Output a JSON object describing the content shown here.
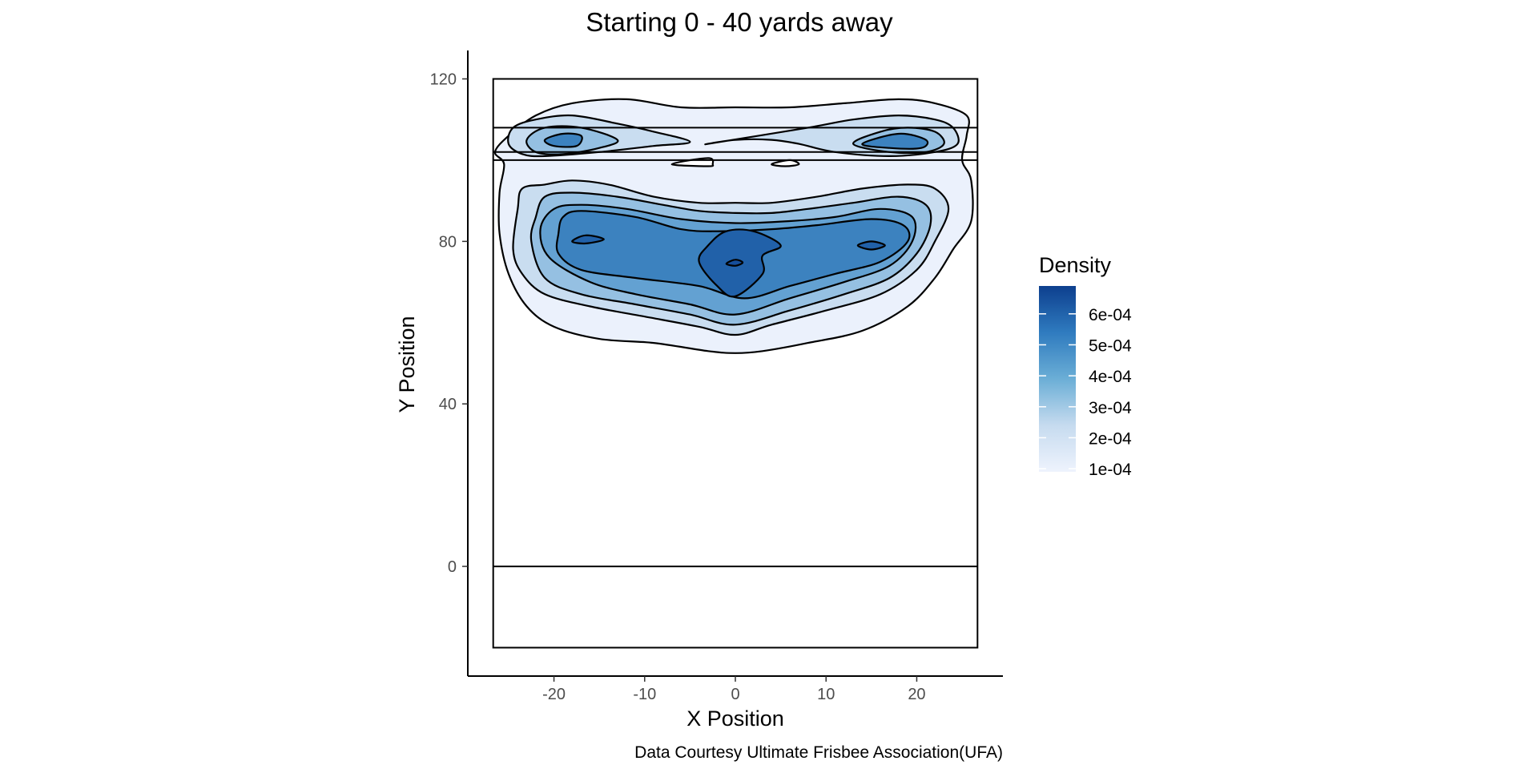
{
  "chart_data": {
    "type": "contour",
    "title": "Starting 0 - 40 yards away",
    "xlabel": "X Position",
    "ylabel": "Y Position",
    "caption": "Data Courtesy Ultimate Frisbee Association(UFA)",
    "xlim": [
      -29.5,
      29.5
    ],
    "ylim": [
      -27,
      127
    ],
    "x_ticks": [
      -20,
      -10,
      0,
      10,
      20
    ],
    "y_ticks": [
      0,
      40,
      80,
      120
    ],
    "x_tick_labels": [
      "-20",
      "-10",
      "0",
      "10",
      "20"
    ],
    "y_tick_labels": [
      "0",
      "40",
      "80",
      "120"
    ],
    "field": {
      "x_range": [
        -26.7,
        26.7
      ],
      "y_range": [
        -20,
        120
      ],
      "horizontal_lines_y": [
        0,
        100,
        102,
        108,
        120
      ]
    },
    "legend": {
      "title": "Density",
      "breaks": [
        0.0001,
        0.0002,
        0.0003,
        0.0004,
        0.0005,
        0.0006
      ],
      "labels": [
        "1e-04",
        "2e-04",
        "3e-04",
        "4e-04",
        "5e-04",
        "6e-04"
      ],
      "range": [
        9e-05,
        0.00069
      ],
      "color_low": "#eef3fd",
      "color_high": "#0d3f8e"
    },
    "density_peaks": [
      {
        "x": 0,
        "y": 75,
        "density": 0.00067
      },
      {
        "x": -16,
        "y": 80.5,
        "density": 0.00065
      },
      {
        "x": 15,
        "y": 79,
        "density": 0.00064
      },
      {
        "x": -19,
        "y": 106,
        "density": 0.00055
      },
      {
        "x": 18.5,
        "y": 106,
        "density": 0.00055
      }
    ],
    "contours": [
      {
        "level": 0.0001,
        "points": [
          [
            -26,
            82
          ],
          [
            -26,
            92
          ],
          [
            -25.5,
            99
          ],
          [
            -26.5,
            102
          ],
          [
            -25,
            106
          ],
          [
            -22,
            111
          ],
          [
            -18,
            114
          ],
          [
            -12,
            115
          ],
          [
            -6,
            113
          ],
          [
            0,
            113
          ],
          [
            6,
            113
          ],
          [
            12,
            114
          ],
          [
            18,
            115
          ],
          [
            22,
            114
          ],
          [
            25.5,
            111
          ],
          [
            25.5,
            106
          ],
          [
            25,
            100
          ],
          [
            26,
            95
          ],
          [
            26,
            85
          ],
          [
            24,
            78
          ],
          [
            22,
            71
          ],
          [
            19,
            64
          ],
          [
            14,
            58
          ],
          [
            8,
            55
          ],
          [
            3,
            53
          ],
          [
            0,
            52.5
          ],
          [
            -3,
            53
          ],
          [
            -9,
            55
          ],
          [
            -15,
            56
          ],
          [
            -20,
            59
          ],
          [
            -23,
            64
          ],
          [
            -25,
            72
          ]
        ]
      },
      {
        "level": 0.0002,
        "points": [
          [
            -25,
            104
          ],
          [
            -23.5,
            101.5
          ],
          [
            -21,
            101
          ],
          [
            -15,
            102
          ],
          [
            -9,
            103.5
          ],
          [
            -5,
            104.5
          ],
          [
            -9,
            107
          ],
          [
            -13,
            109
          ],
          [
            -18,
            111
          ],
          [
            -22,
            110
          ],
          [
            -24.5,
            108
          ]
        ]
      },
      {
        "level": 0.0002,
        "points": [
          [
            -3,
            104
          ],
          [
            0,
            105
          ],
          [
            4,
            105
          ],
          [
            7,
            104
          ],
          [
            11,
            102
          ],
          [
            17,
            101
          ],
          [
            22,
            102
          ],
          [
            24.5,
            104
          ],
          [
            24,
            108
          ],
          [
            22,
            110
          ],
          [
            18,
            111
          ],
          [
            13,
            110
          ],
          [
            8,
            108
          ]
        ]
      },
      {
        "level": 0.0002,
        "points": [
          [
            -24.5,
            78
          ],
          [
            -24,
            88
          ],
          [
            -23.5,
            93
          ],
          [
            -21,
            94
          ],
          [
            -18,
            95
          ],
          [
            -14,
            94
          ],
          [
            -9,
            91
          ],
          [
            -4,
            89.5
          ],
          [
            0,
            89.5
          ],
          [
            4,
            89.5
          ],
          [
            9,
            91
          ],
          [
            14,
            93
          ],
          [
            19,
            94
          ],
          [
            22,
            93
          ],
          [
            23.5,
            88
          ],
          [
            22,
            80
          ],
          [
            20,
            73
          ],
          [
            16,
            67
          ],
          [
            10,
            63
          ],
          [
            4,
            59.5
          ],
          [
            0,
            57
          ],
          [
            -4,
            59
          ],
          [
            -10,
            61.5
          ],
          [
            -16,
            64
          ],
          [
            -21,
            67
          ],
          [
            -23.5,
            72
          ]
        ]
      },
      {
        "level": 0.0003,
        "points": [
          [
            -23,
            105
          ],
          [
            -22,
            102
          ],
          [
            -19,
            101.5
          ],
          [
            -15,
            103
          ],
          [
            -13,
            105
          ],
          [
            -17,
            108
          ],
          [
            -21,
            108
          ]
        ]
      },
      {
        "level": 0.0003,
        "points": [
          [
            13,
            104
          ],
          [
            17,
            102
          ],
          [
            21,
            102
          ],
          [
            23,
            104
          ],
          [
            22,
            107
          ],
          [
            19,
            108
          ],
          [
            16,
            107
          ]
        ]
      },
      {
        "level": 0.0003,
        "points": [
          [
            -22.5,
            80
          ],
          [
            -22,
            86
          ],
          [
            -21,
            91
          ],
          [
            -18,
            92
          ],
          [
            -13,
            91
          ],
          [
            -8,
            89
          ],
          [
            -4,
            87.5
          ],
          [
            0,
            87
          ],
          [
            4,
            87
          ],
          [
            8,
            88
          ],
          [
            13,
            89.5
          ],
          [
            18,
            91
          ],
          [
            21,
            89
          ],
          [
            21.5,
            84
          ],
          [
            20,
            77
          ],
          [
            17,
            71
          ],
          [
            12,
            67
          ],
          [
            6,
            63
          ],
          [
            0,
            59.5
          ],
          [
            -5,
            62
          ],
          [
            -11,
            64.5
          ],
          [
            -17,
            67
          ],
          [
            -21,
            71
          ]
        ]
      },
      {
        "level": 0.0004,
        "points": [
          [
            -21.5,
            83
          ],
          [
            -20,
            88
          ],
          [
            -17,
            89
          ],
          [
            -12,
            88
          ],
          [
            -6,
            85.5
          ],
          [
            0,
            84.5
          ],
          [
            6,
            85
          ],
          [
            11,
            86
          ],
          [
            16,
            88
          ],
          [
            19.5,
            86
          ],
          [
            19.5,
            80
          ],
          [
            17,
            74
          ],
          [
            12,
            70
          ],
          [
            6,
            66
          ],
          [
            0,
            62
          ],
          [
            -5,
            64.5
          ],
          [
            -11,
            67
          ],
          [
            -16,
            70
          ],
          [
            -20.5,
            76
          ]
        ]
      },
      {
        "level": 0.0005,
        "points": [
          [
            -19.5,
            82
          ],
          [
            -19,
            86
          ],
          [
            -17,
            87.5
          ],
          [
            -11,
            86
          ],
          [
            -6,
            83
          ],
          [
            -2,
            82.5
          ],
          [
            4,
            83
          ],
          [
            9,
            84
          ],
          [
            15,
            85.5
          ],
          [
            18.5,
            84
          ],
          [
            19,
            80
          ],
          [
            16,
            75
          ],
          [
            11,
            72
          ],
          [
            6,
            69
          ],
          [
            1,
            66
          ],
          [
            -4,
            69
          ],
          [
            -11,
            71
          ],
          [
            -17,
            73
          ],
          [
            -19.5,
            77
          ]
        ]
      },
      {
        "level": 0.0005,
        "points": [
          [
            -21,
            105
          ],
          [
            -20,
            103.5
          ],
          [
            -17.5,
            103.5
          ],
          [
            -17,
            106
          ],
          [
            -19,
            106.5
          ]
        ]
      },
      {
        "level": 0.0005,
        "points": [
          [
            14,
            104
          ],
          [
            17,
            103
          ],
          [
            20.5,
            103
          ],
          [
            21,
            105
          ],
          [
            18,
            106.5
          ]
        ]
      },
      {
        "level": 0.0006,
        "points": [
          [
            -4,
            75
          ],
          [
            -3,
            79
          ],
          [
            -1,
            82.5
          ],
          [
            2,
            82.5
          ],
          [
            5,
            79
          ],
          [
            3,
            76.5
          ],
          [
            3,
            72
          ],
          [
            0,
            66.5
          ],
          [
            -2,
            69
          ]
        ]
      },
      {
        "level": 0.0006,
        "points": [
          [
            -18,
            80
          ],
          [
            -16.5,
            81.5
          ],
          [
            -14.5,
            80.5
          ],
          [
            -16.5,
            79.5
          ]
        ]
      },
      {
        "level": 0.0006,
        "points": [
          [
            13.5,
            79
          ],
          [
            15,
            80
          ],
          [
            16.5,
            79
          ],
          [
            15,
            78
          ]
        ]
      },
      {
        "level": 0.00065,
        "points": [
          [
            -1,
            74.5
          ],
          [
            0,
            75.5
          ],
          [
            0.8,
            74.8
          ],
          [
            0,
            74
          ]
        ]
      },
      {
        "level": 0.0001,
        "hole": true,
        "points": [
          [
            -7,
            99
          ],
          [
            -3,
            100.5
          ],
          [
            -2.5,
            99
          ],
          [
            -3,
            98.5
          ]
        ]
      },
      {
        "level": 0.0001,
        "hole": true,
        "points": [
          [
            4,
            99
          ],
          [
            6,
            100
          ],
          [
            7,
            99
          ],
          [
            5.5,
            98.5
          ]
        ]
      }
    ]
  }
}
